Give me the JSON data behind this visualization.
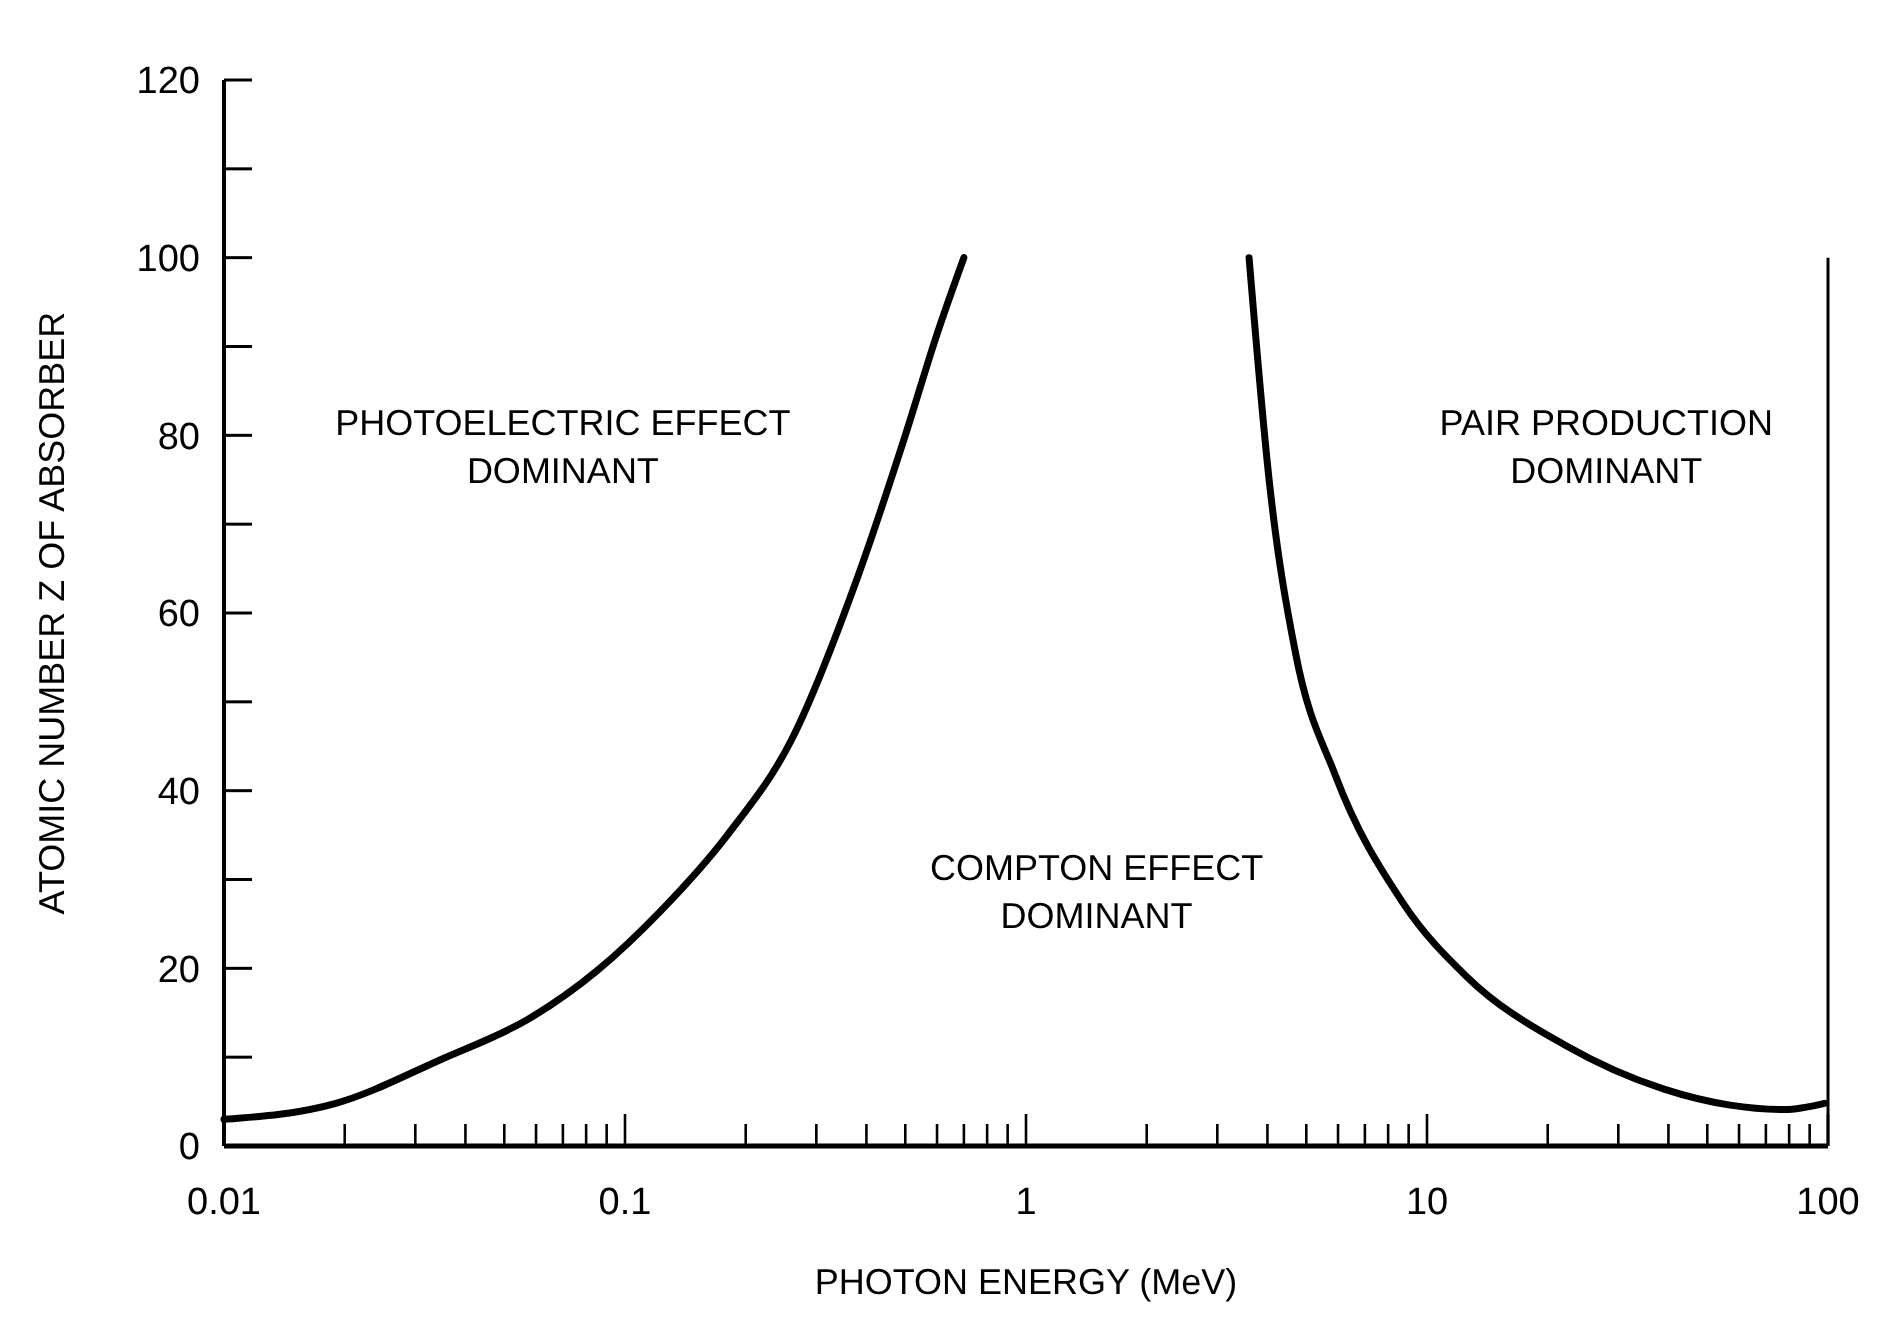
{
  "chart_data": {
    "type": "line",
    "xlabel": "PHOTON ENERGY (MeV)",
    "ylabel": "ATOMIC NUMBER Z OF ABSORBER",
    "log": "x",
    "xlim": [
      0.01,
      100
    ],
    "ylim": [
      0,
      120
    ],
    "xticks": [
      0.01,
      {
        "value": 0.02,
        "label": null
      },
      {
        "value": 0.03,
        "label": null
      },
      {
        "value": 0.04,
        "label": null
      },
      {
        "value": 0.05,
        "label": null
      },
      {
        "value": 0.06,
        "label": null
      },
      {
        "value": 0.07,
        "label": null
      },
      {
        "value": 0.08,
        "label": null
      },
      {
        "value": 0.09,
        "label": null
      },
      0.1,
      {
        "value": 0.2,
        "label": null
      },
      {
        "value": 0.3,
        "label": null
      },
      {
        "value": 0.4,
        "label": null
      },
      {
        "value": 0.5,
        "label": null
      },
      {
        "value": 0.6,
        "label": null
      },
      {
        "value": 0.7,
        "label": null
      },
      {
        "value": 0.8,
        "label": null
      },
      {
        "value": 0.9,
        "label": null
      },
      1,
      {
        "value": 2,
        "label": null
      },
      {
        "value": 3,
        "label": null
      },
      {
        "value": 4,
        "label": null
      },
      {
        "value": 5,
        "label": null
      },
      {
        "value": 6,
        "label": null
      },
      {
        "value": 7,
        "label": null
      },
      {
        "value": 8,
        "label": null
      },
      {
        "value": 9,
        "label": null
      },
      10,
      {
        "value": 20,
        "label": null
      },
      {
        "value": 30,
        "label": null
      },
      {
        "value": 40,
        "label": null
      },
      {
        "value": 50,
        "label": null
      },
      {
        "value": 60,
        "label": null
      },
      {
        "value": 70,
        "label": null
      },
      {
        "value": 80,
        "label": null
      },
      {
        "value": 90,
        "label": null
      },
      100
    ],
    "yticks": [
      0,
      {
        "value": 10,
        "label": null
      },
      20,
      {
        "value": 30,
        "label": null
      },
      40,
      {
        "value": 50,
        "label": null
      },
      60,
      {
        "value": 70,
        "label": null
      },
      80,
      {
        "value": 90,
        "label": null
      },
      100,
      {
        "value": 110,
        "label": null
      },
      120
    ],
    "marker": "none",
    "line_style": "solid",
    "series": [
      {
        "color": "#000000",
        "x": [
          0.01,
          0.019,
          0.035,
          0.058,
          0.085,
          0.123,
          0.18,
          0.26,
          0.38,
          0.5,
          0.6,
          0.7
        ],
        "values": [
          3,
          4.8,
          9.8,
          14.4,
          19.7,
          26.5,
          35,
          45.7,
          64,
          80,
          91.4,
          100
        ]
      },
      {
        "color": "#000000",
        "x": [
          3.6,
          4.05,
          4.7,
          5.9,
          8.7,
          12.6,
          22,
          39,
          57,
          78,
          98
        ],
        "values": [
          100,
          74.5,
          55.5,
          41.8,
          27.4,
          19,
          11.4,
          6.4,
          4.6,
          4.1,
          4.8
        ]
      }
    ],
    "annotations": [
      "PHOTOELECTRIC EFFECT\nDOMINANT",
      "COMPTON EFFECT\nDOMINANT",
      "PAIR PRODUCTION\nDOMINANT"
    ]
  }
}
